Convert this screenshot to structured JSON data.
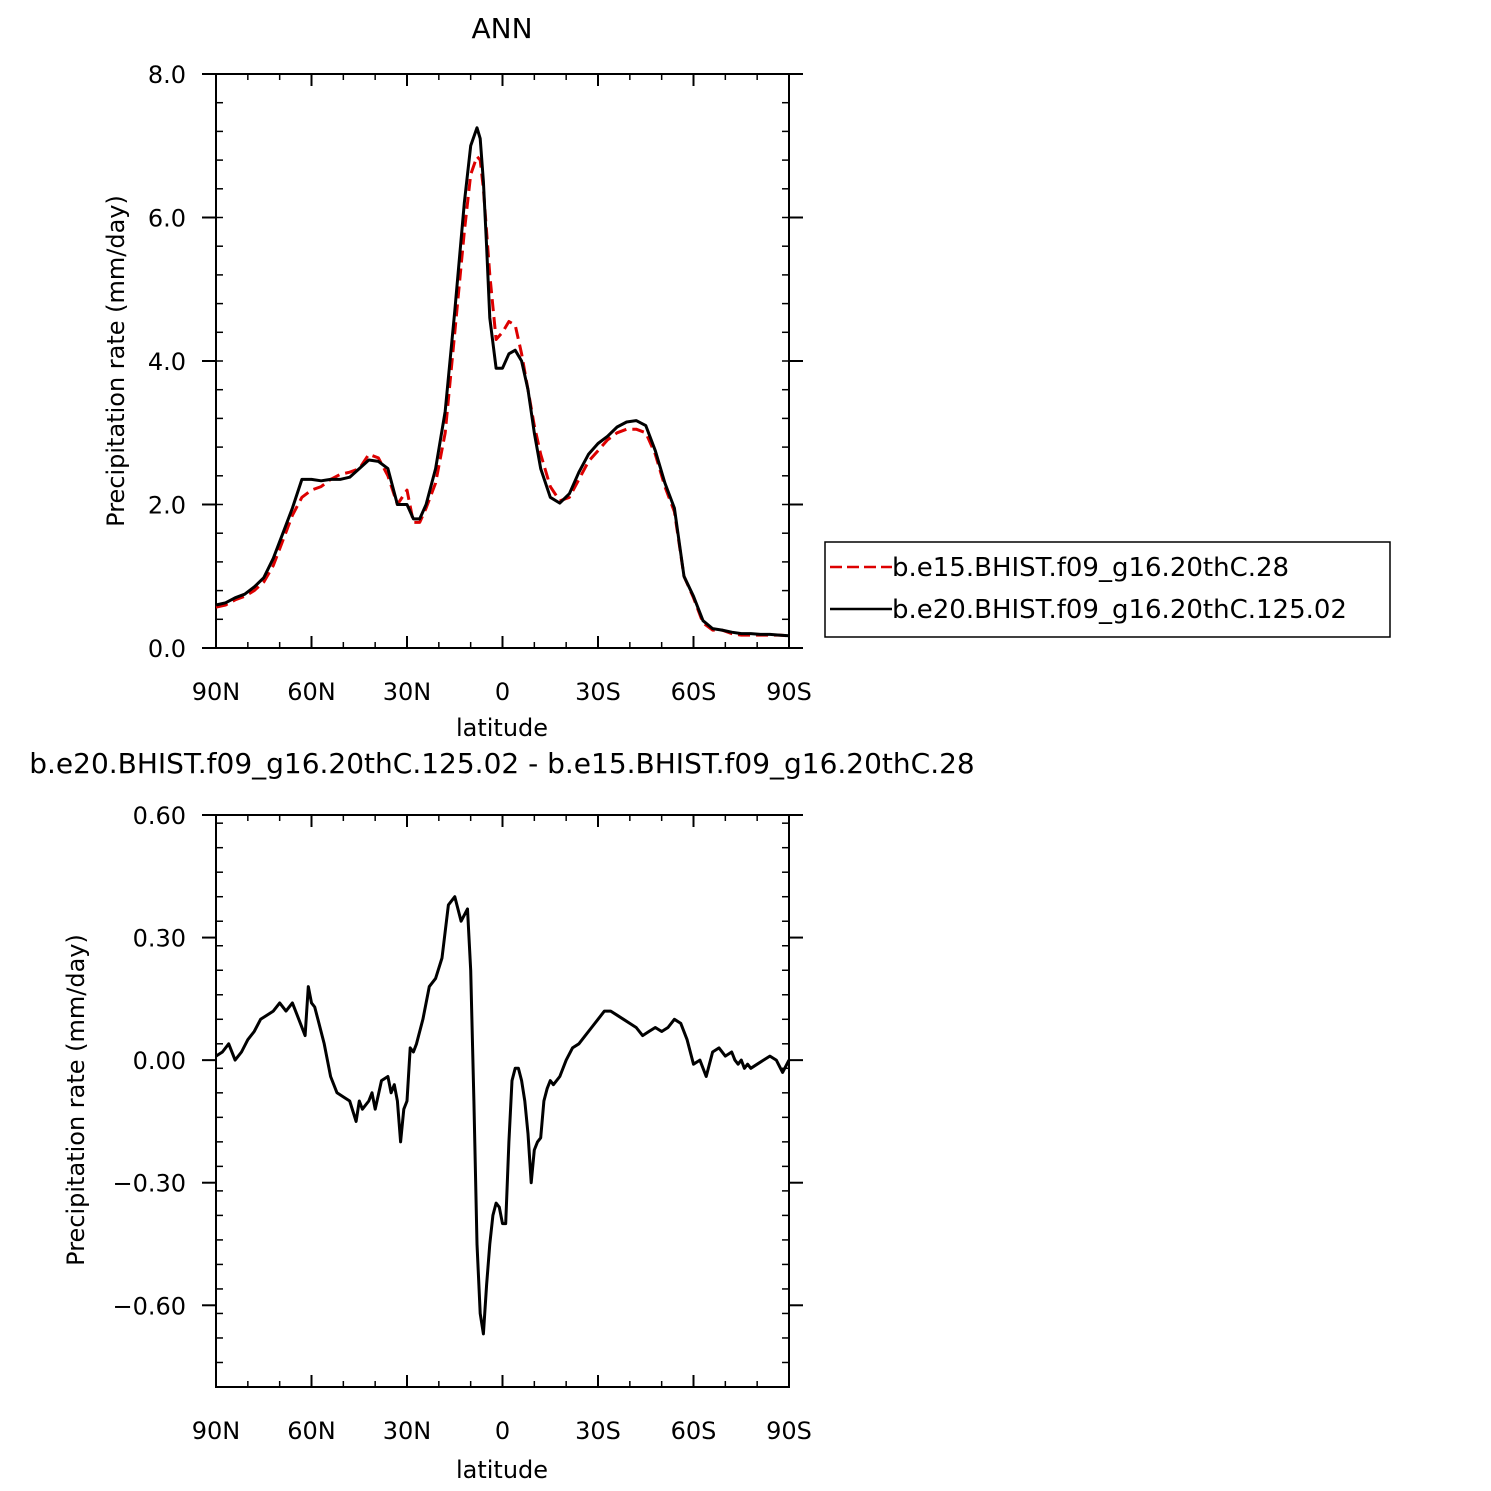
{
  "chart_data": [
    {
      "type": "line",
      "title": "ANN",
      "xlabel": "latitude",
      "ylabel": "Precipitation rate (mm/day)",
      "xlim": [
        90,
        -90
      ],
      "ylim": [
        0,
        8
      ],
      "xticks": [
        90,
        60,
        30,
        0,
        -30,
        -60,
        -90
      ],
      "xtick_labels": [
        "90N",
        "60N",
        "30N",
        "0",
        "30S",
        "60S",
        "90S"
      ],
      "yticks": [
        0,
        2,
        4,
        6,
        8
      ],
      "ytick_labels": [
        "0.0",
        "2.0",
        "4.0",
        "6.0",
        "8.0"
      ],
      "grid": false,
      "legend_position": "right",
      "series": [
        {
          "name": "b.e15.BHIST.f09_g16.20thC.28",
          "color": "#dd0000",
          "dash": "dashed",
          "x": [
            90,
            87,
            84,
            81,
            78,
            75,
            72,
            69,
            66,
            63,
            60,
            57,
            54,
            51,
            48,
            45,
            42,
            39,
            36,
            33,
            30,
            28,
            26,
            24,
            21,
            18,
            15,
            12,
            10,
            8,
            7,
            6,
            5,
            4,
            2,
            0,
            -2,
            -4,
            -6,
            -8,
            -10,
            -12,
            -15,
            -18,
            -21,
            -24,
            -27,
            -30,
            -33,
            -36,
            -39,
            -42,
            -45,
            -48,
            -51,
            -54,
            -57,
            -60,
            -63,
            -66,
            -69,
            -72,
            -75,
            -78,
            -81,
            -84,
            -87,
            -90
          ],
          "y": [
            0.57,
            0.6,
            0.67,
            0.72,
            0.8,
            0.92,
            1.15,
            1.5,
            1.85,
            2.1,
            2.2,
            2.25,
            2.35,
            2.42,
            2.45,
            2.5,
            2.7,
            2.65,
            2.4,
            2.0,
            2.2,
            1.75,
            1.75,
            1.95,
            2.3,
            3.0,
            4.4,
            5.8,
            6.6,
            6.85,
            6.8,
            6.4,
            5.8,
            5.2,
            4.3,
            4.4,
            4.55,
            4.5,
            4.1,
            3.6,
            3.1,
            2.7,
            2.25,
            2.05,
            2.1,
            2.35,
            2.6,
            2.75,
            2.9,
            3.0,
            3.05,
            3.05,
            3.0,
            2.7,
            2.25,
            1.9,
            1.0,
            0.7,
            0.35,
            0.25,
            0.25,
            0.2,
            0.18,
            0.18,
            0.18,
            0.18,
            0.18,
            0.17
          ]
        },
        {
          "name": "b.e20.BHIST.f09_g16.20thC.125.02",
          "color": "#000000",
          "dash": "solid",
          "x": [
            90,
            87,
            84,
            81,
            78,
            75,
            72,
            69,
            66,
            63,
            60,
            57,
            54,
            51,
            48,
            45,
            42,
            39,
            36,
            33,
            30,
            28,
            26,
            24,
            21,
            18,
            15,
            12,
            10,
            8,
            7,
            6,
            5,
            4,
            2,
            0,
            -2,
            -4,
            -6,
            -8,
            -10,
            -12,
            -15,
            -18,
            -21,
            -24,
            -27,
            -30,
            -33,
            -36,
            -39,
            -42,
            -45,
            -48,
            -51,
            -54,
            -57,
            -60,
            -63,
            -66,
            -69,
            -72,
            -75,
            -78,
            -81,
            -84,
            -87,
            -90
          ],
          "y": [
            0.6,
            0.63,
            0.7,
            0.75,
            0.85,
            0.98,
            1.25,
            1.6,
            1.95,
            2.35,
            2.35,
            2.33,
            2.35,
            2.35,
            2.38,
            2.5,
            2.62,
            2.6,
            2.5,
            2.0,
            2.0,
            1.8,
            1.8,
            2.0,
            2.5,
            3.3,
            4.7,
            6.2,
            7.0,
            7.25,
            7.1,
            6.5,
            5.6,
            4.6,
            3.9,
            3.9,
            4.1,
            4.15,
            4.0,
            3.6,
            3.0,
            2.5,
            2.1,
            2.02,
            2.15,
            2.45,
            2.7,
            2.85,
            2.95,
            3.08,
            3.15,
            3.17,
            3.1,
            2.75,
            2.3,
            1.95,
            1.0,
            0.72,
            0.38,
            0.27,
            0.25,
            0.22,
            0.2,
            0.2,
            0.19,
            0.19,
            0.18,
            0.17
          ]
        }
      ]
    },
    {
      "type": "line",
      "title": "b.e20.BHIST.f09_g16.20thC.125.02 - b.e15.BHIST.f09_g16.20thC.28",
      "xlabel": "latitude",
      "ylabel": "Precipitation rate (mm/day)",
      "xlim": [
        90,
        -90
      ],
      "ylim": [
        -0.8,
        0.6
      ],
      "xticks": [
        90,
        60,
        30,
        0,
        -30,
        -60,
        -90
      ],
      "xtick_labels": [
        "90N",
        "60N",
        "30N",
        "0",
        "30S",
        "60S",
        "90S"
      ],
      "yticks": [
        -0.6,
        -0.3,
        0.0,
        0.3,
        0.6
      ],
      "ytick_labels": [
        "-0.60",
        "-0.30",
        "0.00",
        "0.30",
        "0.60"
      ],
      "grid": false,
      "series": [
        {
          "color": "#000000",
          "dash": "solid",
          "x": [
            90,
            88,
            86,
            84,
            82,
            80,
            78,
            76,
            74,
            72,
            70,
            68,
            66,
            64,
            62,
            61,
            60,
            59,
            58,
            56,
            54,
            52,
            50,
            48,
            46,
            45,
            44,
            43,
            42,
            41,
            40,
            38,
            36,
            35,
            34,
            33,
            32,
            31,
            30,
            29,
            28,
            27,
            25,
            23,
            21,
            19,
            17,
            15,
            13,
            11,
            10,
            9,
            8,
            7,
            6,
            5,
            4,
            3,
            2,
            1,
            0,
            -1,
            -2,
            -3,
            -4,
            -5,
            -6,
            -7,
            -8,
            -9,
            -10,
            -11,
            -12,
            -13,
            -14,
            -15,
            -16,
            -18,
            -20,
            -22,
            -24,
            -26,
            -28,
            -30,
            -32,
            -34,
            -36,
            -38,
            -40,
            -42,
            -44,
            -46,
            -48,
            -50,
            -52,
            -54,
            -56,
            -58,
            -60,
            -62,
            -64,
            -66,
            -68,
            -70,
            -72,
            -73,
            -74,
            -75,
            -76,
            -77,
            -78,
            -80,
            -82,
            -84,
            -86,
            -88,
            -90
          ],
          "y": [
            0.01,
            0.02,
            0.04,
            0.0,
            0.02,
            0.05,
            0.07,
            0.1,
            0.11,
            0.12,
            0.14,
            0.12,
            0.14,
            0.1,
            0.06,
            0.18,
            0.14,
            0.13,
            0.1,
            0.04,
            -0.04,
            -0.08,
            -0.09,
            -0.1,
            -0.15,
            -0.1,
            -0.12,
            -0.11,
            -0.1,
            -0.08,
            -0.12,
            -0.05,
            -0.04,
            -0.08,
            -0.06,
            -0.1,
            -0.2,
            -0.12,
            -0.1,
            0.03,
            0.02,
            0.04,
            0.1,
            0.18,
            0.2,
            0.25,
            0.38,
            0.4,
            0.34,
            0.37,
            0.22,
            -0.1,
            -0.45,
            -0.62,
            -0.67,
            -0.55,
            -0.45,
            -0.38,
            -0.35,
            -0.36,
            -0.4,
            -0.4,
            -0.2,
            -0.05,
            -0.02,
            -0.02,
            -0.05,
            -0.1,
            -0.18,
            -0.3,
            -0.22,
            -0.2,
            -0.19,
            -0.1,
            -0.07,
            -0.05,
            -0.06,
            -0.04,
            0.0,
            0.03,
            0.04,
            0.06,
            0.08,
            0.1,
            0.12,
            0.12,
            0.11,
            0.1,
            0.09,
            0.08,
            0.06,
            0.07,
            0.08,
            0.07,
            0.08,
            0.1,
            0.09,
            0.05,
            -0.01,
            0.0,
            -0.04,
            0.02,
            0.03,
            0.01,
            0.02,
            0.0,
            -0.01,
            0.0,
            -0.02,
            -0.01,
            -0.02,
            -0.01,
            0.0,
            0.01,
            0.0,
            -0.03,
            0.0
          ]
        }
      ]
    }
  ]
}
